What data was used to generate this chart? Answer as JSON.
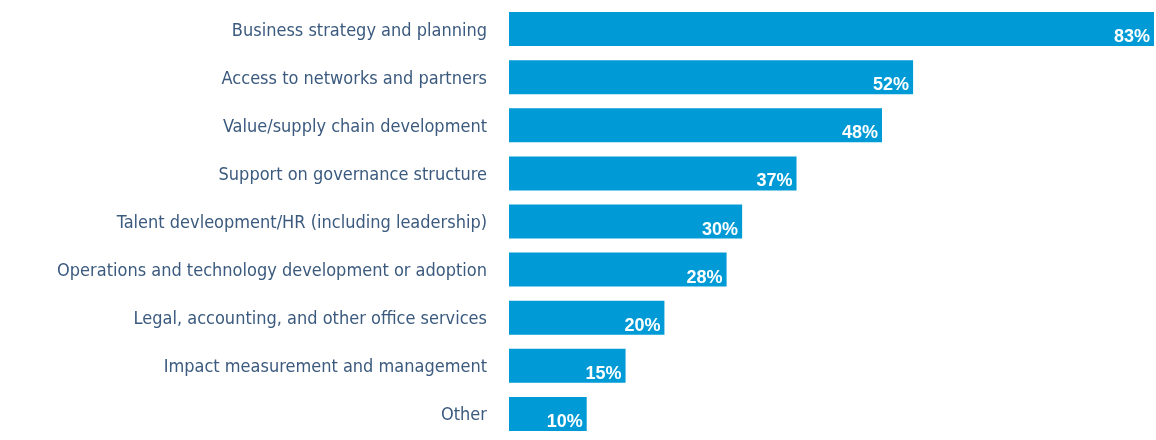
{
  "chart_data": {
    "type": "bar",
    "orientation": "horizontal",
    "categories": [
      "Business strategy and planning",
      "Access to networks and partners",
      "Value/supply chain development",
      "Support on governance structure",
      "Talent devleopment/HR (including leadership)",
      "Operations and technology development or adoption",
      "Legal, accounting, and other office services",
      "Impact measurement and management",
      "Other"
    ],
    "values": [
      83,
      52,
      48,
      37,
      30,
      28,
      20,
      15,
      10
    ],
    "color": "#009bd6",
    "data_labels": true,
    "value_labels": [
      "83%",
      "52%",
      "48%",
      "37%",
      "30%",
      "28%",
      "20%",
      "15%",
      "10%"
    ]
  }
}
